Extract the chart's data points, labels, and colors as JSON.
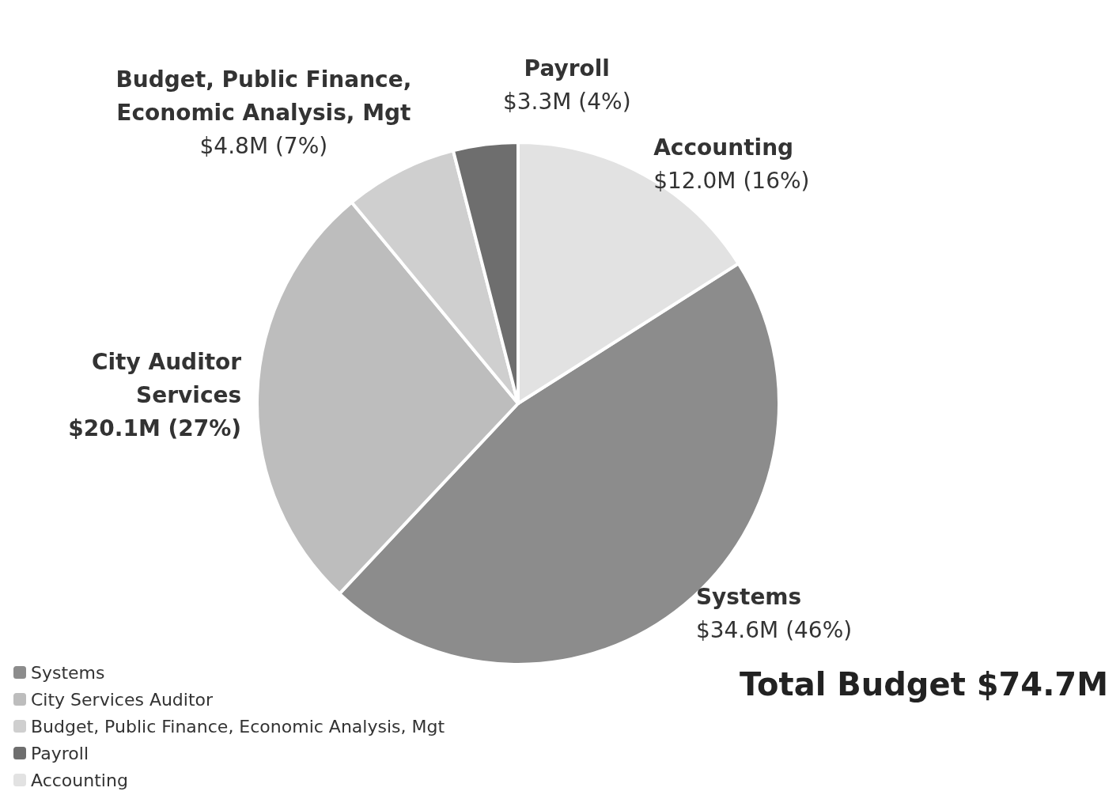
{
  "chart_data": {
    "type": "pie",
    "categories": [
      "Systems",
      "City Services Auditor",
      "Budget, Public Finance, Economic Analysis, Mgt",
      "Payroll",
      "Accounting"
    ],
    "values": [
      46,
      27,
      7,
      4,
      16
    ],
    "colors": [
      "#8c8c8c",
      "#bdbdbd",
      "#cfcfcf",
      "#6e6e6e",
      "#e2e2e2"
    ],
    "value_labels": [
      "Systems\n$34.6M (46%)",
      "City Auditor\nServices\n$20.1M (27%)",
      "Budget, Public Finance,\nEconomic Analysis, Mgt\n$4.8M (7%)",
      "Payroll\n$3.3M (4%)",
      "Accounting\n$12.0M (16%)"
    ],
    "legend": "bottom left",
    "annotations": [
      "Total Budget $74.7M"
    ]
  }
}
